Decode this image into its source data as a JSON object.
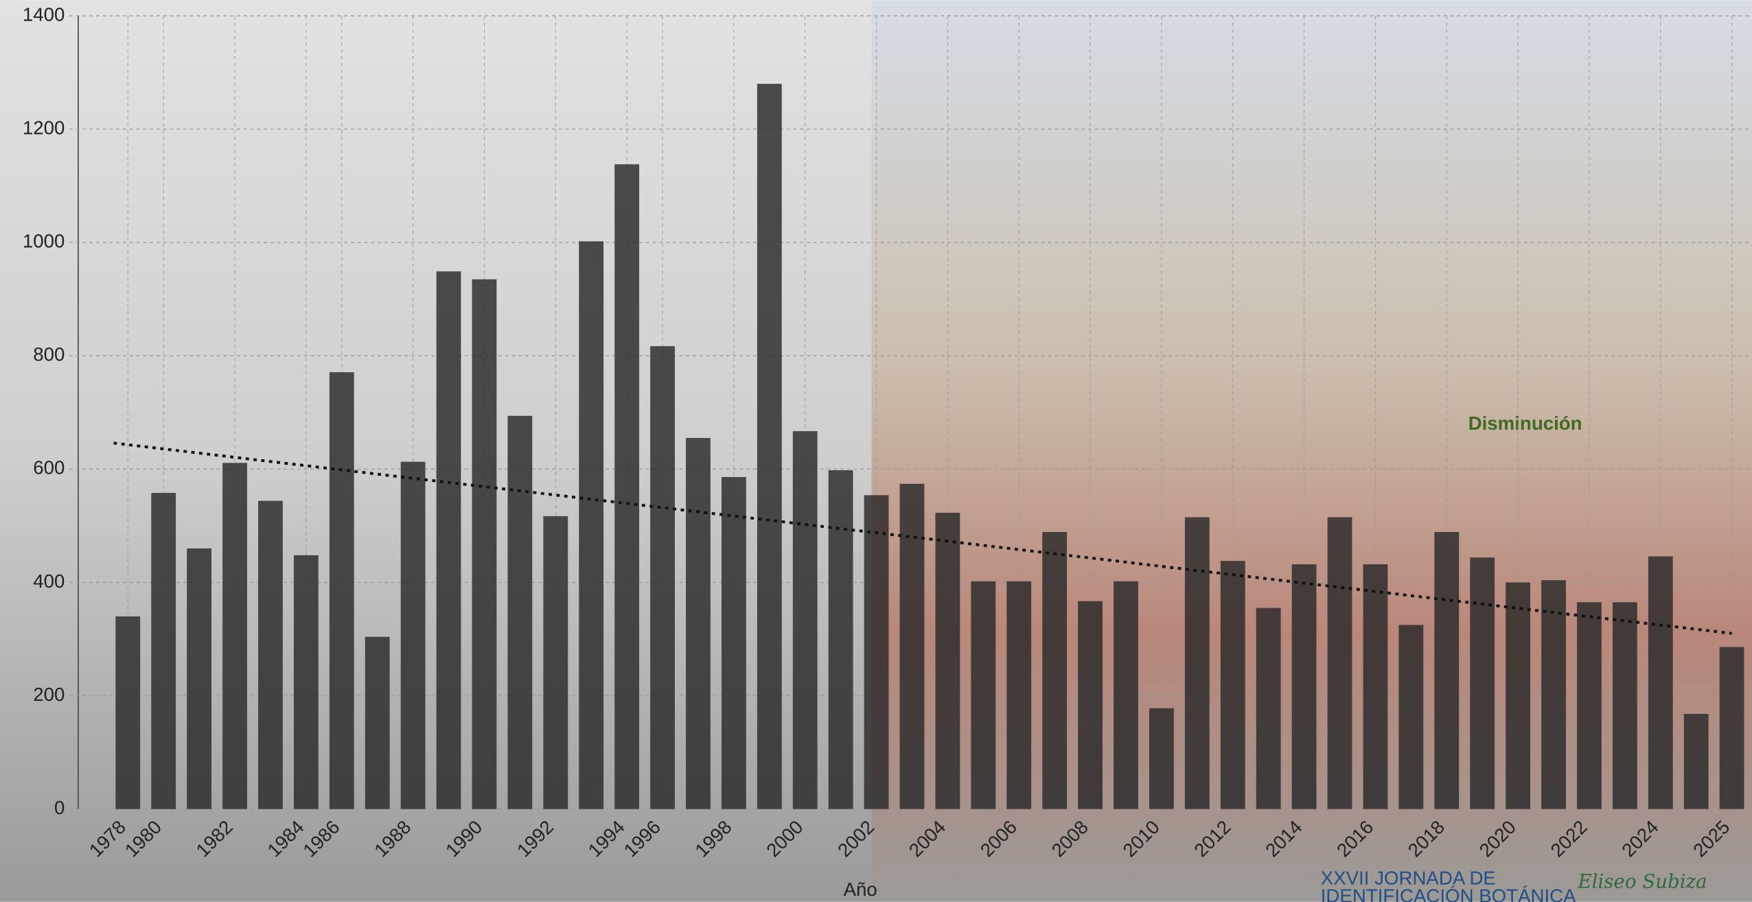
{
  "chart_data": {
    "type": "bar",
    "categories": [
      "1978",
      "1980",
      null,
      "1982",
      null,
      "1984",
      "1986",
      null,
      "1988",
      null,
      "1990",
      null,
      "1992",
      null,
      "1994",
      "1996",
      null,
      "1998",
      null,
      "2000",
      null,
      "2002",
      null,
      "2004",
      null,
      "2006",
      null,
      "2008",
      null,
      "2010",
      null,
      "2012",
      null,
      "2014",
      null,
      "2016",
      null,
      "2018",
      null,
      "2020",
      null,
      "2022",
      null,
      "2024",
      null,
      "2025"
    ],
    "values": [
      340,
      558,
      460,
      611,
      544,
      448,
      771,
      304,
      613,
      949,
      935,
      694,
      517,
      1002,
      1138,
      817,
      655,
      586,
      1280,
      667,
      598,
      554,
      574,
      523,
      402,
      402,
      489,
      367,
      402,
      178,
      515,
      438,
      355,
      432,
      515,
      432,
      325,
      489,
      444,
      400,
      404,
      365,
      365,
      446,
      168,
      286
    ],
    "color": "#2a2a2a",
    "trend": [
      646,
      310
    ],
    "ylim": [
      0,
      1400
    ],
    "yticks": [
      0,
      200,
      400,
      600,
      800,
      1000,
      1200,
      1400
    ],
    "grid": true,
    "xlabel": "Año",
    "annotation": "Disminución",
    "footer": [
      "XXVII JORNADA DE",
      "IDENTIFICACIÓN BOTÁNICA"
    ],
    "signature": "Eliseo Subiza"
  }
}
